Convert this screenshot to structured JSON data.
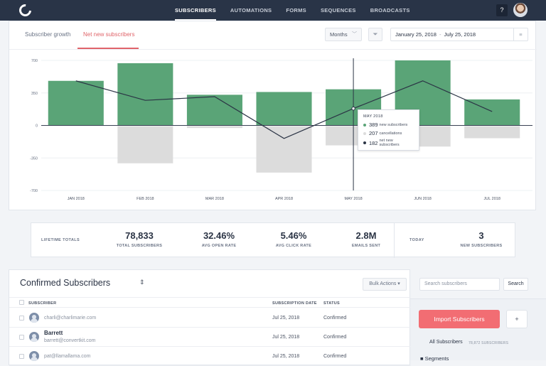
{
  "nav": {
    "items": [
      "SUBSCRIBERS",
      "AUTOMATIONS",
      "FORMS",
      "SEQUENCES",
      "BROADCASTS"
    ],
    "help": "?"
  },
  "chart_card": {
    "tabs": [
      "Subscriber growth",
      "Net new subscribers"
    ],
    "period": "Months",
    "date_from": "January 25, 2018",
    "date_sep": "-",
    "date_to": "July 25, 2018"
  },
  "chart_data": {
    "type": "bar",
    "categories": [
      "JAN 2018",
      "FEB 2018",
      "MAR 2018",
      "APR 2018",
      "MAY 2018",
      "JUN 2018",
      "JUL 2018"
    ],
    "series": [
      {
        "name": "new subscribers",
        "color": "#5aa477",
        "values": [
          480,
          670,
          330,
          360,
          389,
          700,
          280
        ]
      },
      {
        "name": "cancellations",
        "color": "#dcdcdc",
        "values": [
          0,
          400,
          20,
          500,
          207,
          220,
          130
        ]
      },
      {
        "name": "net new subscribers",
        "color": "#2b3445",
        "values": [
          480,
          270,
          310,
          -140,
          182,
          480,
          150
        ]
      }
    ],
    "yticks": [
      700,
      350,
      0,
      -350,
      -700
    ],
    "ylim": [
      -700,
      700
    ],
    "grid": true,
    "tooltip": {
      "title": "MAY 2018",
      "rows": [
        {
          "value": "389",
          "label": "new subscribers",
          "color": "#5aa477"
        },
        {
          "value": "207",
          "label": "cancellations",
          "color": "#dcdcdc"
        },
        {
          "value": "182",
          "label": "net new subscribers",
          "color": "#2b3445"
        }
      ]
    }
  },
  "totals": {
    "label": "LIFETIME TOTALS",
    "metrics": [
      {
        "value": "78,833",
        "label": "TOTAL SUBSCRIBERS"
      },
      {
        "value": "32.46%",
        "label": "AVG OPEN RATE"
      },
      {
        "value": "5.46%",
        "label": "AVG CLICK RATE"
      },
      {
        "value": "2.8M",
        "label": "EMAILS SENT"
      }
    ],
    "today_label": "TODAY",
    "today_value": "3",
    "today_caption": "NEW SUBSCRIBERS"
  },
  "subscribers": {
    "title": "Confirmed Subscribers",
    "bulk": "Bulk Actions ▾",
    "columns": [
      "SUBSCRIBER",
      "SUBSCRIPTION DATE",
      "STATUS"
    ],
    "rows": [
      {
        "name": "",
        "email": "charli@charlimarie.com",
        "date": "Jul 25, 2018",
        "status": "Confirmed"
      },
      {
        "name": "Barrett",
        "email": "barrett@convertkit.com",
        "date": "Jul 25, 2018",
        "status": "Confirmed"
      },
      {
        "name": "",
        "email": "pat@llamallama.com",
        "date": "Jul 25, 2018",
        "status": "Confirmed"
      }
    ]
  },
  "sidebar": {
    "search_placeholder": "Search subscribers",
    "search_button": "Search",
    "import_button": "Import Subscribers",
    "add_button": "+",
    "all_label": "All Subscribers",
    "all_count": "78,872 SUBSCRIBERS",
    "segments": "Segments"
  },
  "colors": {
    "nav": "#293447",
    "accent": "#e0646a",
    "green": "#5aa477",
    "gray": "#dcdcdc"
  }
}
